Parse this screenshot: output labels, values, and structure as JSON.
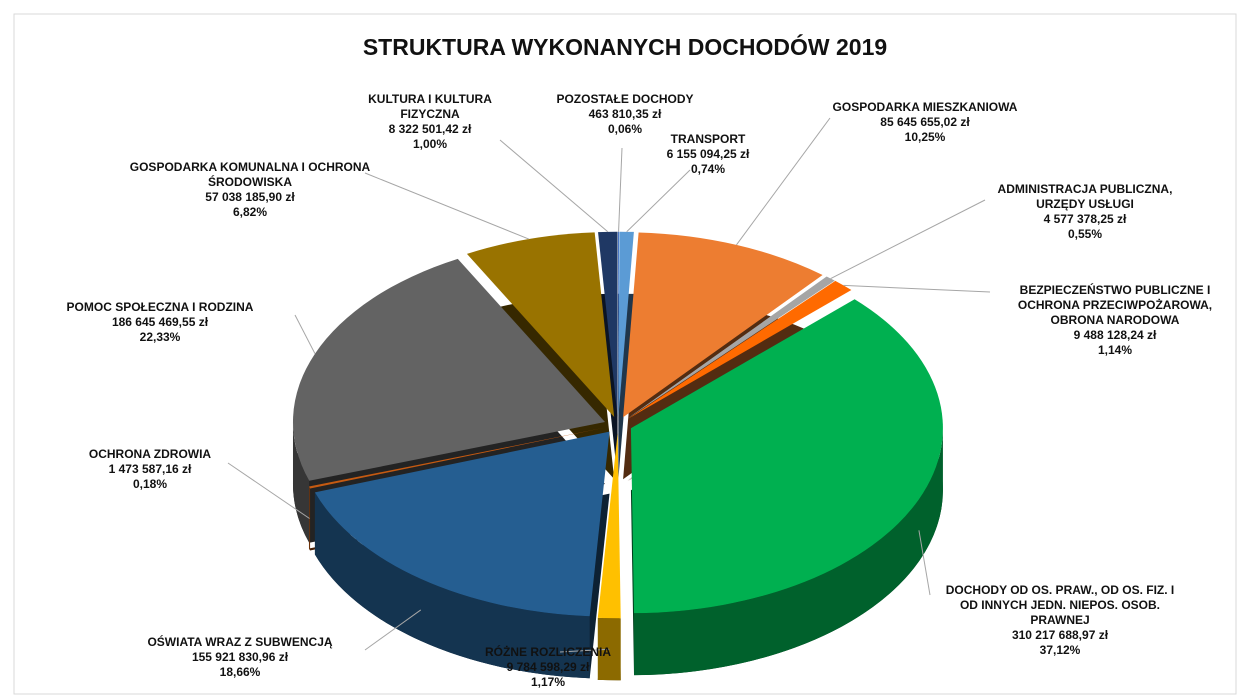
{
  "chart_data": {
    "type": "pie",
    "title": "STRUKTURA WYKONANYCH DOCHODÓW 2019",
    "categories": [
      "POZOSTAŁE DOCHODY",
      "TRANSPORT",
      "GOSPODARKA MIESZKANIOWA",
      "ADMINISTRACJA PUBLICZNA, URZĘDY USŁUGI",
      "BEZPIECZEŃSTWO PUBLICZNE I OCHRONA PRZECIWPOŻAROWA, OBRONA NARODOWA",
      "DOCHODY OD OS. PRAW., OD OS. FIZ. I OD INNYCH JEDN. NIEPOS. OSOB. PRAWNEJ",
      "RÓŻNE ROZLICZENIA",
      "OŚWIATA WRAZ Z SUBWENCJĄ",
      "OCHRONA ZDROWIA",
      "POMOC SPOŁECZNA I RODZINA",
      "GOSPODARKA KOMUNALNA I OCHRONA ŚRODOWISKA",
      "KULTURA I KULTURA FIZYCZNA"
    ],
    "values": [
      463810.35,
      6155094.25,
      85645655.02,
      4577378.25,
      9488128.24,
      310217688.97,
      9784598.29,
      155921830.96,
      1473587.16,
      186645469.55,
      57038185.9,
      8322501.42
    ],
    "value_labels": [
      "463 810,35 zł",
      "6 155 094,25 zł",
      "85 645 655,02 zł",
      "4 577 378,25 zł",
      "9 488 128,24 zł",
      "310 217 688,97 zł",
      "9 784 598,29 zł",
      "155 921 830,96 zł",
      "1 473 587,16 zł",
      "186 645 469,55 zł",
      "57 038 185,90 zł",
      "8 322 501,42 zł"
    ],
    "percentages": [
      0.06,
      0.74,
      10.25,
      0.55,
      1.14,
      37.12,
      1.17,
      18.66,
      0.18,
      22.33,
      6.82,
      1.0
    ],
    "percentage_labels": [
      "0,06%",
      "0,74%",
      "10,25%",
      "0,55%",
      "1,14%",
      "37,12%",
      "1,17%",
      "18,66%",
      "0,18%",
      "22,33%",
      "6,82%",
      "1,00%"
    ],
    "colors": [
      "#4472c4",
      "#5b9bd5",
      "#ed7d31",
      "#a5a5a5",
      "#ff6a00",
      "#00b050",
      "#ffc000",
      "#255e91",
      "#c55a11",
      "#636363",
      "#997300",
      "#1f3864"
    ]
  }
}
